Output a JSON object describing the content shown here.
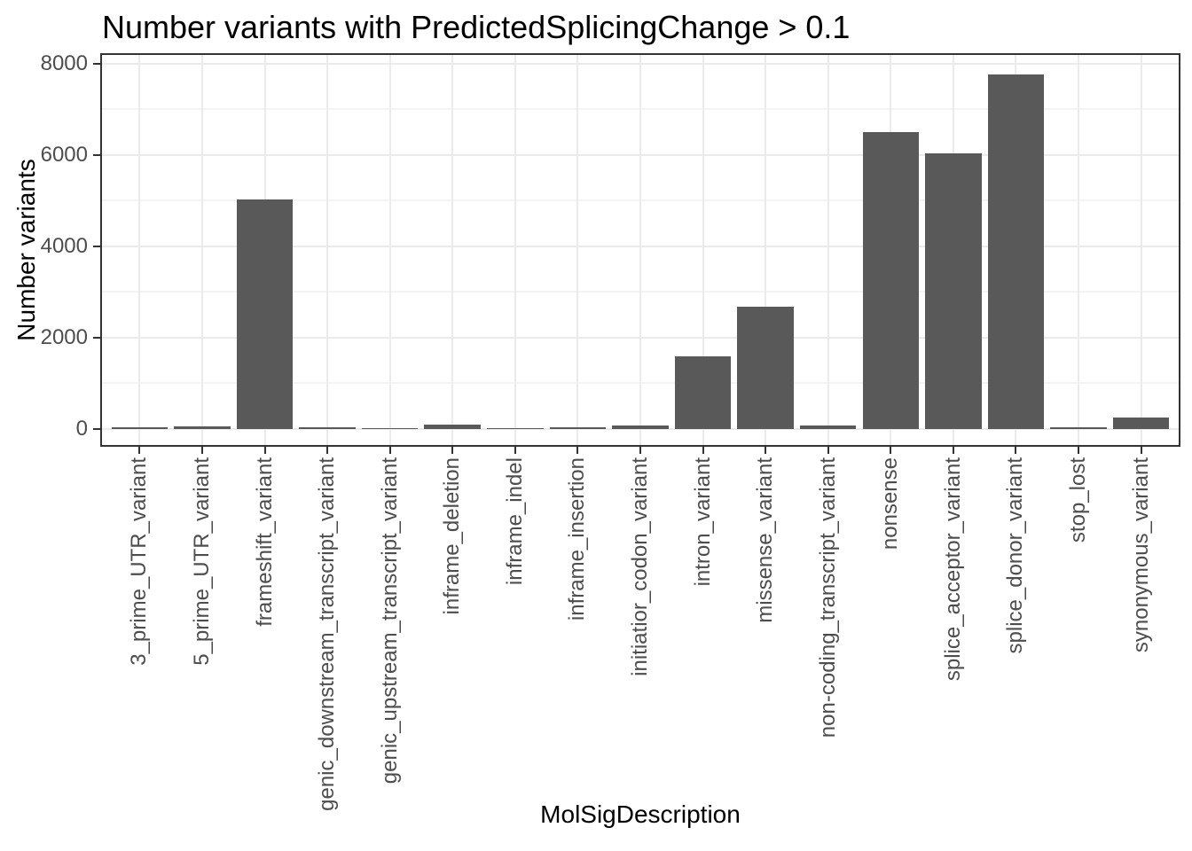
{
  "chart_data": {
    "type": "bar",
    "title": "Number variants with PredictedSplicingChange > 0.1",
    "xlabel": "MolSigDescription",
    "ylabel": "Number variants",
    "categories": [
      "3_prime_UTR_variant",
      "5_prime_UTR_variant",
      "frameshift_variant",
      "genic_downstream_transcript_variant",
      "genic_upstream_transcript_variant",
      "inframe_deletion",
      "inframe_indel",
      "inframe_insertion",
      "initiatior_codon_variant",
      "intron_variant",
      "missense_variant",
      "non-coding_transcript_variant",
      "nonsense",
      "splice_acceptor_variant",
      "splice_donor_variant",
      "stop_lost",
      "synonymous_variant"
    ],
    "values": [
      25,
      45,
      5020,
      30,
      5,
      100,
      5,
      25,
      80,
      1580,
      2670,
      70,
      6510,
      6040,
      7760,
      30,
      250
    ],
    "y_ticks_major": [
      0,
      2000,
      4000,
      6000,
      8000
    ],
    "y_ticks_minor": [
      1000,
      3000,
      5000,
      7000
    ],
    "ylim": [
      0,
      8000
    ],
    "grid": true,
    "legend_position": "none",
    "bar_color": "#595959",
    "panel_border_color": "#333333",
    "grid_major_color": "#EBEBEB",
    "grid_minor_color": "#F4F4F4",
    "axis_text_color": "#4D4D4D",
    "title_color": "#000000"
  }
}
